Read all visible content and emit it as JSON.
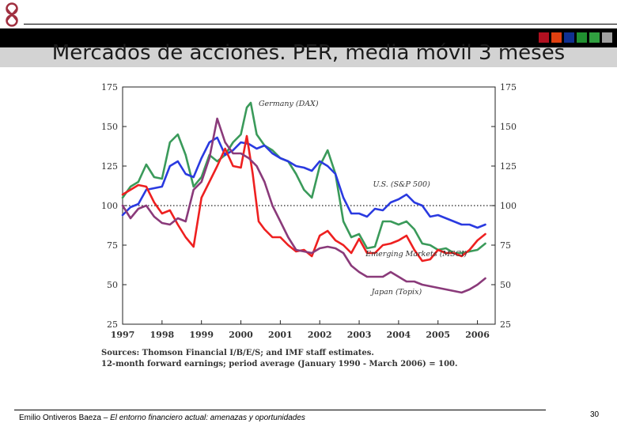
{
  "slide": {
    "title": "Mercados de acciones. PER, media móvil 3 meses",
    "footer_author": "Emilio Ontiveros Baeza – ",
    "footer_title": "El entorno financiero actual: amenazas y oportunidades",
    "page_number": "30",
    "square_colors": [
      "#b01020",
      "#e04010",
      "#103090",
      "#209030",
      "#30a040",
      "#a0a0a0"
    ]
  },
  "chart_data": {
    "type": "line",
    "source_line1": "Sources: Thomson Financial I/B/E/S; and IMF staff estimates.",
    "source_line2": "12-month forward earnings; period average (January 1990 - March 2006) = 100.",
    "xlabel": "",
    "ylabel": "",
    "xlim": [
      1997,
      2006.45
    ],
    "ylim": [
      25,
      175
    ],
    "yticks": [
      25,
      50,
      75,
      100,
      125,
      150,
      175
    ],
    "xticks": [
      1997,
      1998,
      1999,
      2000,
      2001,
      2002,
      2003,
      2004,
      2005,
      2006
    ],
    "reference_line": 100,
    "grid": false,
    "series": [
      {
        "name": "Germany (DAX)",
        "color": "#3a9a5a",
        "x": [
          1997,
          1997.2,
          1997.4,
          1997.6,
          1997.8,
          1998,
          1998.2,
          1998.4,
          1998.6,
          1998.8,
          1999,
          1999.2,
          1999.4,
          1999.6,
          1999.8,
          2000,
          2000.15,
          2000.25,
          2000.4,
          2000.6,
          2000.8,
          2001,
          2001.2,
          2001.4,
          2001.6,
          2001.8,
          2002,
          2002.2,
          2002.4,
          2002.6,
          2002.8,
          2003,
          2003.2,
          2003.4,
          2003.6,
          2003.8,
          2004,
          2004.2,
          2004.4,
          2004.6,
          2004.8,
          2005,
          2005.2,
          2005.4,
          2005.6,
          2005.8,
          2006,
          2006.2
        ],
        "y": [
          105,
          112,
          115,
          126,
          118,
          117,
          140,
          145,
          132,
          112,
          118,
          132,
          128,
          132,
          140,
          145,
          162,
          165,
          145,
          138,
          135,
          130,
          128,
          120,
          110,
          105,
          125,
          135,
          120,
          90,
          80,
          82,
          73,
          74,
          90,
          90,
          88,
          90,
          85,
          76,
          75,
          72,
          73,
          70,
          70,
          71,
          72,
          76
        ]
      },
      {
        "name": "U.S. (S&P 500)",
        "color": "#2a3ae0",
        "x": [
          1997,
          1997.2,
          1997.4,
          1997.6,
          1997.8,
          1998,
          1998.2,
          1998.4,
          1998.6,
          1998.8,
          1999,
          1999.2,
          1999.4,
          1999.6,
          1999.8,
          2000,
          2000.2,
          2000.4,
          2000.6,
          2000.8,
          2001,
          2001.2,
          2001.4,
          2001.6,
          2001.8,
          2002,
          2002.2,
          2002.4,
          2002.6,
          2002.8,
          2003,
          2003.2,
          2003.4,
          2003.6,
          2003.8,
          2004,
          2004.2,
          2004.4,
          2004.6,
          2004.8,
          2005,
          2005.2,
          2005.4,
          2005.6,
          2005.8,
          2006,
          2006.2
        ],
        "y": [
          94,
          99,
          101,
          110,
          111,
          112,
          125,
          128,
          120,
          118,
          130,
          140,
          143,
          132,
          135,
          140,
          139,
          136,
          138,
          133,
          130,
          128,
          125,
          124,
          122,
          128,
          125,
          120,
          105,
          95,
          95,
          93,
          98,
          97,
          102,
          104,
          107,
          102,
          100,
          93,
          94,
          92,
          90,
          88,
          88,
          86,
          88
        ]
      },
      {
        "name": "Emerging Markets (MSCI)",
        "color": "#ee2020",
        "x": [
          1997,
          1997.2,
          1997.4,
          1997.6,
          1997.8,
          1998,
          1998.2,
          1998.4,
          1998.6,
          1998.8,
          1999,
          1999.2,
          1999.4,
          1999.6,
          1999.8,
          2000,
          2000.15,
          2000.3,
          2000.45,
          2000.6,
          2000.8,
          2001,
          2001.2,
          2001.4,
          2001.6,
          2001.8,
          2002,
          2002.2,
          2002.4,
          2002.6,
          2002.8,
          2003,
          2003.2,
          2003.4,
          2003.6,
          2003.8,
          2004,
          2004.2,
          2004.4,
          2004.6,
          2004.8,
          2005,
          2005.2,
          2005.4,
          2005.6,
          2005.8,
          2006,
          2006.2
        ],
        "y": [
          107,
          110,
          113,
          112,
          102,
          95,
          97,
          88,
          80,
          74,
          105,
          115,
          125,
          136,
          125,
          124,
          144,
          120,
          90,
          85,
          80,
          80,
          75,
          71,
          72,
          68,
          81,
          84,
          78,
          75,
          70,
          79,
          70,
          70,
          75,
          76,
          78,
          81,
          72,
          65,
          66,
          72,
          70,
          70,
          68,
          72,
          78,
          82
        ]
      },
      {
        "name": "Japan (Topix)",
        "color": "#8a3a7a",
        "x": [
          1997,
          1997.2,
          1997.4,
          1997.6,
          1997.8,
          1998,
          1998.2,
          1998.4,
          1998.6,
          1998.8,
          1999,
          1999.2,
          1999.4,
          1999.6,
          1999.8,
          2000,
          2000.2,
          2000.4,
          2000.6,
          2000.8,
          2001,
          2001.2,
          2001.4,
          2001.6,
          2001.8,
          2002,
          2002.2,
          2002.4,
          2002.6,
          2002.8,
          2003,
          2003.2,
          2003.4,
          2003.6,
          2003.8,
          2004,
          2004.2,
          2004.4,
          2004.6,
          2004.8,
          2005,
          2005.2,
          2005.4,
          2005.6,
          2005.8,
          2006,
          2006.2
        ],
        "y": [
          100,
          92,
          98,
          100,
          93,
          89,
          88,
          92,
          90,
          110,
          115,
          130,
          155,
          140,
          133,
          133,
          130,
          125,
          115,
          100,
          90,
          80,
          72,
          71,
          70,
          73,
          74,
          73,
          70,
          62,
          58,
          55,
          55,
          55,
          58,
          55,
          52,
          52,
          50,
          49,
          48,
          47,
          46,
          45,
          47,
          50,
          54
        ]
      }
    ]
  }
}
